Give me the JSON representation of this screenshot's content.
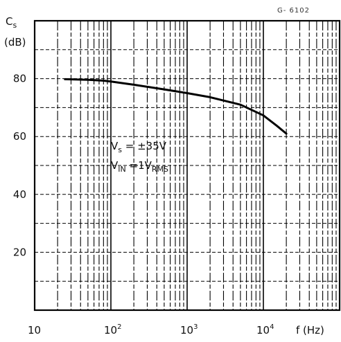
{
  "figure_code": "G- 6102",
  "chart_data": {
    "type": "line",
    "x_scale": "log",
    "y_label_top": "C",
    "y_label_sub": "s",
    "y_unit": "(dB)",
    "x_label": "f (Hz)",
    "x_tick_labels": [
      {
        "base": "10",
        "exp": ""
      },
      {
        "base": "10",
        "exp": "2"
      },
      {
        "base": "10",
        "exp": "3"
      },
      {
        "base": "10",
        "exp": "4"
      }
    ],
    "y_tick_labels": [
      "20",
      "40",
      "60",
      "80"
    ],
    "y_tick_values": [
      20,
      40,
      60,
      80
    ],
    "xlim": [
      10,
      100000
    ],
    "ylim": [
      0,
      100
    ],
    "grid": true,
    "annotations": [
      {
        "main": "V",
        "sub": "s",
        "rest": " = ±35V"
      },
      {
        "main": "V",
        "sub": "IN",
        "rest": " =1V",
        "sub2": "RMS"
      }
    ],
    "series": [
      {
        "x": [
          25,
          50,
          80,
          100,
          200,
          500,
          1000,
          2000,
          5000,
          10000,
          15000,
          20000
        ],
        "y": [
          79.8,
          79.6,
          79.3,
          79.0,
          77.9,
          76.3,
          75.0,
          73.6,
          71.0,
          67.3,
          63.7,
          61.0
        ]
      }
    ]
  }
}
